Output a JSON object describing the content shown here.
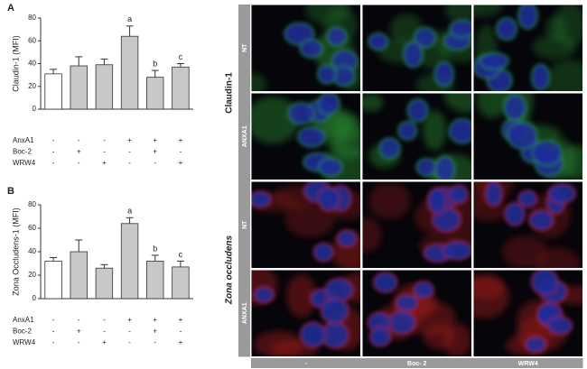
{
  "panel_labels": [
    "A",
    "B"
  ],
  "chart_data": [
    {
      "type": "bar",
      "ylabel": "Claudin-1 (MFI)",
      "values": [
        31,
        38,
        39,
        64,
        28,
        37
      ],
      "errors": [
        4,
        8,
        5,
        9,
        6,
        3
      ],
      "colors": [
        "#ffffff",
        "#c8c8c8",
        "#c8c8c8",
        "#c8c8c8",
        "#c8c8c8",
        "#c8c8c8"
      ],
      "annotations": [
        null,
        null,
        null,
        "a",
        "b",
        "c"
      ],
      "ylim": [
        0,
        80
      ],
      "yticks": [
        0,
        20,
        40,
        60,
        80
      ],
      "conditions": [
        {
          "name": "AnxA1",
          "signs": [
            "-",
            "-",
            "-",
            "+",
            "+",
            "+"
          ]
        },
        {
          "name": "Boc-2",
          "signs": [
            "-",
            "+",
            "-",
            "-",
            "+",
            "-"
          ]
        },
        {
          "name": "WRW4",
          "signs": [
            "-",
            "-",
            "+",
            "-",
            "-",
            "+"
          ]
        }
      ]
    },
    {
      "type": "bar",
      "ylabel": "Zona Occludens-1 (MFI)",
      "values": [
        32,
        40,
        26,
        64,
        32,
        27
      ],
      "errors": [
        3,
        10,
        3,
        5,
        5,
        5
      ],
      "colors": [
        "#ffffff",
        "#c8c8c8",
        "#c8c8c8",
        "#c8c8c8",
        "#c8c8c8",
        "#c8c8c8"
      ],
      "annotations": [
        null,
        null,
        null,
        "a",
        "b",
        "c"
      ],
      "ylim": [
        0,
        80
      ],
      "yticks": [
        0,
        20,
        40,
        60,
        80
      ],
      "conditions": [
        {
          "name": "AnxA1",
          "signs": [
            "-",
            "-",
            "-",
            "+",
            "+",
            "+"
          ]
        },
        {
          "name": "Boc-2",
          "signs": [
            "-",
            "+",
            "-",
            "-",
            "+",
            "-"
          ]
        },
        {
          "name": "WRW4",
          "signs": [
            "-",
            "-",
            "+",
            "-",
            "-",
            "+"
          ]
        }
      ]
    }
  ],
  "image_grid": {
    "groups": [
      "Claudin-1",
      "Zona occludens"
    ],
    "row_labels": [
      "NT",
      "ANXA1",
      "NT",
      "ANXA1"
    ],
    "column_labels": [
      "-",
      "Boc- 2",
      "WRW4"
    ]
  }
}
